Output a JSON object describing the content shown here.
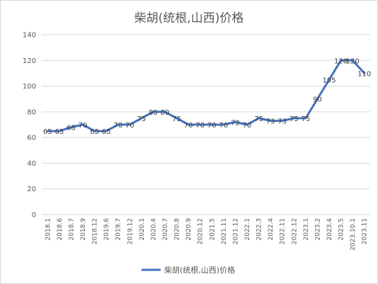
{
  "chart_data": {
    "type": "line",
    "title": "柴胡(统根,山西)价格",
    "xlabel": "",
    "ylabel": "",
    "ylim": [
      0,
      140
    ],
    "yticks": [
      0,
      20,
      40,
      60,
      80,
      100,
      120,
      140
    ],
    "grid": true,
    "legend_position": "bottom",
    "categories": [
      "2018.1",
      "2018.6",
      "2018.7",
      "2018.9",
      "2018.12",
      "2019.6",
      "2019.7",
      "2019.12",
      "2020.1",
      "2020.4",
      "2020.7",
      "2020.8",
      "2020.9",
      "2020.12",
      "2021.5",
      "2021.11",
      "2021.12",
      "2022.1",
      "2022.3",
      "2022.4",
      "2022.11",
      "2022.12",
      "2023.1",
      "2023.2",
      "2023.4",
      "2023.5",
      "2023.10.1",
      "2023.11"
    ],
    "series": [
      {
        "name": "柴胡(统根,山西)价格",
        "color": "#4472c4",
        "values": [
          65,
          65,
          68,
          70,
          65,
          65,
          70,
          70,
          75,
          80,
          80,
          75,
          70,
          70,
          70,
          70,
          72,
          70,
          75,
          73,
          73,
          75,
          75,
          90,
          105,
          120,
          120,
          110
        ]
      }
    ]
  }
}
